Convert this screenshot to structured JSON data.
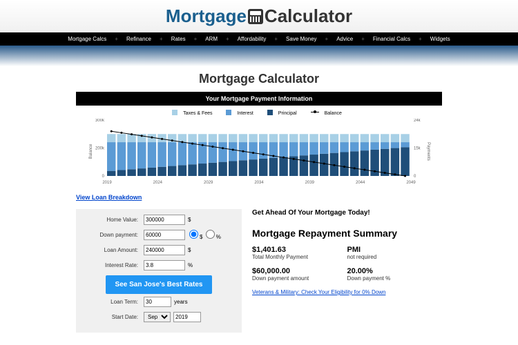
{
  "logo": {
    "part1": "Mortgage",
    "part2": "Calculator"
  },
  "nav": [
    "Mortgage Calcs",
    "Refinance",
    "Rates",
    "ARM",
    "Affordability",
    "Save Money",
    "Advice",
    "Financial Calcs",
    "Widgets"
  ],
  "page_title": "Mortgage Calculator",
  "info_bar": "Your Mortgage Payment Information",
  "legend": {
    "taxes": "Taxes & Fees",
    "interest": "Interest",
    "principal": "Principal",
    "balance": "Balance"
  },
  "chart": {
    "colors": {
      "taxes": "#a8d0e6",
      "interest": "#5b9bd5",
      "principal": "#1f4e79",
      "balance": "#000"
    },
    "x_labels": [
      "2019",
      "2024",
      "2029",
      "2034",
      "2039",
      "2044",
      "2049"
    ],
    "y_left": [
      "0",
      "200k",
      "300k"
    ],
    "y_right": [
      "0",
      "15k",
      "24k"
    ],
    "y_label_left": "Balance",
    "y_label_right": "Payments",
    "years": 30,
    "balance_start": 240000,
    "balance_end": 0,
    "payment_total": 18000,
    "taxes_portion": 3500,
    "max_balance": 300000,
    "max_payment": 24000
  },
  "breakdown_link": "View Loan Breakdown",
  "form": {
    "home_value": {
      "label": "Home Value:",
      "value": "300000",
      "unit": "$"
    },
    "down_payment": {
      "label": "Down payment:",
      "value": "60000",
      "unit_dollar": "$",
      "unit_pct": "%"
    },
    "loan_amount": {
      "label": "Loan Amount:",
      "value": "240000",
      "unit": "$"
    },
    "interest_rate": {
      "label": "Interest Rate:",
      "value": "3.8",
      "unit": "%"
    },
    "button": "See San Jose's Best Rates",
    "loan_term": {
      "label": "Loan Term:",
      "value": "30",
      "unit": "years"
    },
    "start_date": {
      "label": "Start Date:",
      "month": "Sep",
      "year": "2019"
    }
  },
  "summary": {
    "headline": "Get Ahead Of Your Mortgage Today!",
    "title": "Mortgage Repayment Summary",
    "monthly": {
      "value": "$1,401.63",
      "label": "Total Monthly Payment"
    },
    "pmi": {
      "title": "PMI",
      "value": "not required"
    },
    "down_amt": {
      "value": "$60,000.00",
      "label": "Down payment amount"
    },
    "down_pct": {
      "value": "20.00%",
      "label": "Down payment %"
    },
    "vet_link": "Veterans & Military: Check Your Eligibility for 0% Down"
  }
}
